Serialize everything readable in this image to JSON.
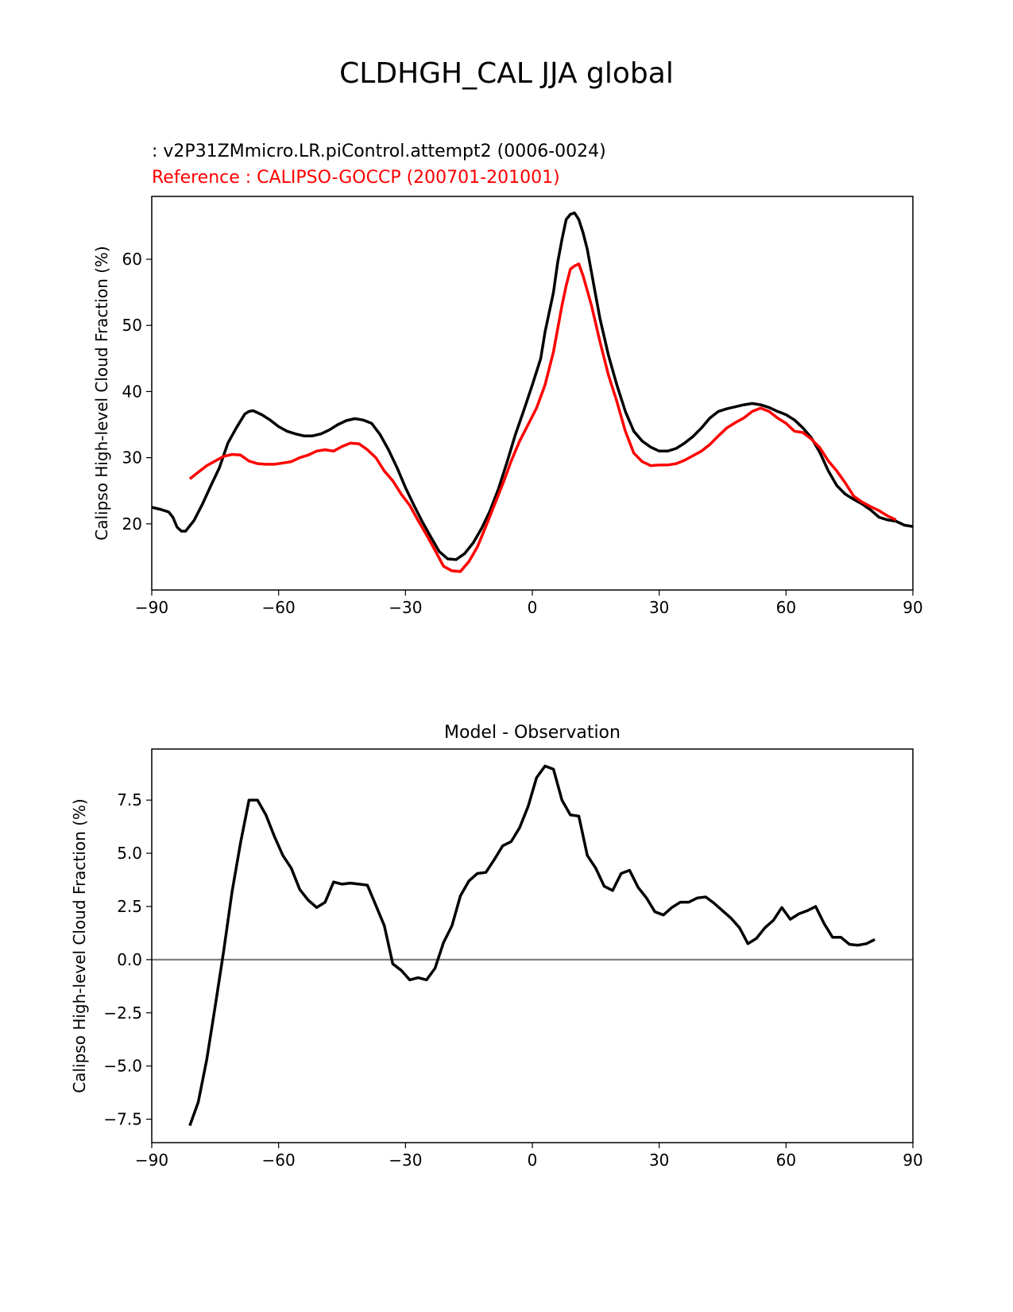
{
  "figure_title": "CLDHGH_CAL JJA global",
  "colors": {
    "test": "#000000",
    "reference": "#ff0000",
    "zero_line": "#808080"
  },
  "chart_data": [
    {
      "type": "line",
      "legend": {
        "test_label": " : v2P31ZMmicro.LR.piControl.attempt2 (0006-0024)",
        "ref_label": "Reference : CALIPSO-GOCCP (200701-201001)",
        "placement": "top-left"
      },
      "xlabel": "",
      "ylabel": "Calipso High-level Cloud Fraction (%)",
      "xlim": [
        -90,
        90
      ],
      "ylim": [
        10,
        69.5
      ],
      "xticks": [
        -90,
        -60,
        -30,
        0,
        30,
        60,
        90
      ],
      "xtick_labels": [
        "−90",
        "−60",
        "−30",
        "0",
        "30",
        "60",
        "90"
      ],
      "yticks": [
        20,
        30,
        40,
        50,
        60
      ],
      "ytick_labels": [
        "20",
        "30",
        "40",
        "50",
        "60"
      ],
      "series": [
        {
          "name": "test",
          "color": "#000000",
          "points": [
            [
              -90,
              22.5
            ],
            [
              -88,
              22.2
            ],
            [
              -86,
              21.8
            ],
            [
              -85,
              21
            ],
            [
              -84,
              19.5
            ],
            [
              -83,
              18.9
            ],
            [
              -82,
              18.9
            ],
            [
              -80,
              20.5
            ],
            [
              -78,
              23
            ],
            [
              -76,
              25.8
            ],
            [
              -74,
              28.5
            ],
            [
              -72,
              32.2
            ],
            [
              -70,
              34.5
            ],
            [
              -68,
              36.6
            ],
            [
              -67,
              37
            ],
            [
              -66,
              37.1
            ],
            [
              -64,
              36.5
            ],
            [
              -62,
              35.7
            ],
            [
              -60,
              34.7
            ],
            [
              -58,
              34
            ],
            [
              -56,
              33.6
            ],
            [
              -54,
              33.3
            ],
            [
              -52,
              33.3
            ],
            [
              -50,
              33.6
            ],
            [
              -48,
              34.2
            ],
            [
              -46,
              35
            ],
            [
              -44,
              35.6
            ],
            [
              -42,
              35.9
            ],
            [
              -40,
              35.7
            ],
            [
              -38,
              35.2
            ],
            [
              -36,
              33.5
            ],
            [
              -34,
              31.2
            ],
            [
              -32,
              28.5
            ],
            [
              -30,
              25.5
            ],
            [
              -28,
              22.8
            ],
            [
              -26,
              20.3
            ],
            [
              -24,
              18
            ],
            [
              -22,
              15.8
            ],
            [
              -20,
              14.7
            ],
            [
              -18,
              14.6
            ],
            [
              -16,
              15.5
            ],
            [
              -14,
              17.1
            ],
            [
              -12,
              19.3
            ],
            [
              -10,
              22
            ],
            [
              -8,
              25.3
            ],
            [
              -6,
              29.3
            ],
            [
              -4,
              33.5
            ],
            [
              -2,
              37.2
            ],
            [
              0,
              41
            ],
            [
              2,
              45
            ],
            [
              3,
              49
            ],
            [
              4,
              52
            ],
            [
              5,
              55
            ],
            [
              6,
              59.5
            ],
            [
              7,
              63
            ],
            [
              8,
              66
            ],
            [
              9,
              66.8
            ],
            [
              10,
              67
            ],
            [
              11,
              66
            ],
            [
              12,
              64
            ],
            [
              13,
              61.5
            ],
            [
              14,
              58
            ],
            [
              15,
              54.5
            ],
            [
              16,
              51
            ],
            [
              18,
              45.5
            ],
            [
              20,
              41
            ],
            [
              22,
              37
            ],
            [
              24,
              34
            ],
            [
              26,
              32.5
            ],
            [
              28,
              31.6
            ],
            [
              30,
              31
            ],
            [
              32,
              31
            ],
            [
              34,
              31.4
            ],
            [
              36,
              32.2
            ],
            [
              38,
              33.2
            ],
            [
              40,
              34.5
            ],
            [
              42,
              36
            ],
            [
              44,
              37
            ],
            [
              46,
              37.4
            ],
            [
              48,
              37.7
            ],
            [
              50,
              38
            ],
            [
              52,
              38.2
            ],
            [
              54,
              38
            ],
            [
              56,
              37.6
            ],
            [
              58,
              37
            ],
            [
              60,
              36.5
            ],
            [
              62,
              35.7
            ],
            [
              64,
              34.5
            ],
            [
              66,
              33
            ],
            [
              68,
              30.8
            ],
            [
              70,
              28
            ],
            [
              72,
              25.8
            ],
            [
              74,
              24.5
            ],
            [
              76,
              23.7
            ],
            [
              78,
              23
            ],
            [
              80,
              22.1
            ],
            [
              82,
              21
            ],
            [
              84,
              20.6
            ],
            [
              86,
              20.4
            ],
            [
              88,
              19.8
            ],
            [
              90,
              19.6
            ]
          ]
        },
        {
          "name": "reference",
          "color": "#ff0000",
          "points": [
            [
              -81,
              26.8
            ],
            [
              -79,
              27.8
            ],
            [
              -77,
              28.8
            ],
            [
              -75,
              29.5
            ],
            [
              -73,
              30.2
            ],
            [
              -71,
              30.5
            ],
            [
              -69,
              30.4
            ],
            [
              -67,
              29.5
            ],
            [
              -65,
              29.1
            ],
            [
              -63,
              29
            ],
            [
              -61,
              29
            ],
            [
              -59,
              29.2
            ],
            [
              -57,
              29.4
            ],
            [
              -55,
              30
            ],
            [
              -53,
              30.4
            ],
            [
              -51,
              31
            ],
            [
              -49,
              31.2
            ],
            [
              -47,
              31
            ],
            [
              -45,
              31.7
            ],
            [
              -43,
              32.2
            ],
            [
              -41,
              32.1
            ],
            [
              -39,
              31.2
            ],
            [
              -37,
              30
            ],
            [
              -35,
              28
            ],
            [
              -33,
              26.5
            ],
            [
              -31,
              24.5
            ],
            [
              -29,
              22.8
            ],
            [
              -27,
              20.5
            ],
            [
              -25,
              18.3
            ],
            [
              -23,
              16
            ],
            [
              -21,
              13.6
            ],
            [
              -19,
              12.9
            ],
            [
              -17,
              12.8
            ],
            [
              -15,
              14.3
            ],
            [
              -13,
              16.5
            ],
            [
              -11,
              19.6
            ],
            [
              -9,
              22.8
            ],
            [
              -7,
              26
            ],
            [
              -5,
              29.5
            ],
            [
              -3,
              32.5
            ],
            [
              -1,
              35
            ],
            [
              1,
              37.5
            ],
            [
              3,
              41
            ],
            [
              5,
              46
            ],
            [
              7,
              53
            ],
            [
              8,
              56
            ],
            [
              9,
              58.5
            ],
            [
              10,
              59
            ],
            [
              11,
              59.3
            ],
            [
              12,
              57.5
            ],
            [
              14,
              53
            ],
            [
              16,
              47.5
            ],
            [
              18,
              42.5
            ],
            [
              20,
              38.5
            ],
            [
              22,
              34
            ],
            [
              24,
              30.7
            ],
            [
              26,
              29.4
            ],
            [
              28,
              28.8
            ],
            [
              30,
              28.9
            ],
            [
              32,
              28.9
            ],
            [
              34,
              29.1
            ],
            [
              36,
              29.6
            ],
            [
              38,
              30.3
            ],
            [
              40,
              31
            ],
            [
              42,
              32
            ],
            [
              44,
              33.3
            ],
            [
              46,
              34.5
            ],
            [
              48,
              35.3
            ],
            [
              50,
              36
            ],
            [
              52,
              37
            ],
            [
              54,
              37.5
            ],
            [
              56,
              37
            ],
            [
              58,
              36
            ],
            [
              60,
              35.2
            ],
            [
              62,
              34
            ],
            [
              64,
              33.8
            ],
            [
              66,
              32.8
            ],
            [
              68,
              31.5
            ],
            [
              70,
              29.5
            ],
            [
              72,
              28
            ],
            [
              74,
              26.2
            ],
            [
              76,
              24.2
            ],
            [
              78,
              23.3
            ],
            [
              80,
              22.6
            ],
            [
              82,
              22
            ],
            [
              84,
              21.2
            ],
            [
              86,
              20.6
            ]
          ]
        }
      ]
    },
    {
      "type": "line",
      "title": "Model - Observation",
      "xlabel": "",
      "ylabel": "Calipso High-level Cloud Fraction (%)",
      "xlim": [
        -90,
        90
      ],
      "ylim": [
        -8.6,
        9.9
      ],
      "xticks": [
        -90,
        -60,
        -30,
        0,
        30,
        60,
        90
      ],
      "xtick_labels": [
        "−90",
        "−60",
        "−30",
        "0",
        "30",
        "60",
        "90"
      ],
      "yticks": [
        -7.5,
        -5.0,
        -2.5,
        0.0,
        2.5,
        5.0,
        7.5
      ],
      "ytick_labels": [
        "−7.5",
        "−5.0",
        "−2.5",
        "0.0",
        "2.5",
        "5.0",
        "7.5"
      ],
      "zero_line": 0,
      "series": [
        {
          "name": "difference",
          "color": "#000000",
          "points": [
            [
              -81,
              -7.8
            ],
            [
              -79,
              -6.7
            ],
            [
              -77,
              -4.7
            ],
            [
              -75,
              -2.2
            ],
            [
              -73,
              0.4
            ],
            [
              -71,
              3.2
            ],
            [
              -69,
              5.5
            ],
            [
              -67,
              7.5
            ],
            [
              -65,
              7.5
            ],
            [
              -63,
              6.8
            ],
            [
              -61,
              5.8
            ],
            [
              -59,
              4.9
            ],
            [
              -57,
              4.3
            ],
            [
              -55,
              3.3
            ],
            [
              -53,
              2.8
            ],
            [
              -51,
              2.45
            ],
            [
              -49,
              2.7
            ],
            [
              -47,
              3.65
            ],
            [
              -45,
              3.55
            ],
            [
              -43,
              3.6
            ],
            [
              -41,
              3.55
            ],
            [
              -39,
              3.5
            ],
            [
              -37,
              2.55
            ],
            [
              -35,
              1.6
            ],
            [
              -33,
              -0.2
            ],
            [
              -31,
              -0.5
            ],
            [
              -29,
              -0.95
            ],
            [
              -27,
              -0.85
            ],
            [
              -25,
              -0.95
            ],
            [
              -23,
              -0.4
            ],
            [
              -21,
              0.8
            ],
            [
              -19,
              1.6
            ],
            [
              -17,
              3.0
            ],
            [
              -15,
              3.7
            ],
            [
              -13,
              4.05
            ],
            [
              -11,
              4.1
            ],
            [
              -9,
              4.7
            ],
            [
              -7,
              5.35
            ],
            [
              -5,
              5.55
            ],
            [
              -3,
              6.2
            ],
            [
              -1,
              7.2
            ],
            [
              1,
              8.55
            ],
            [
              3,
              9.1
            ],
            [
              5,
              8.95
            ],
            [
              7,
              7.5
            ],
            [
              9,
              6.8
            ],
            [
              11,
              6.75
            ],
            [
              13,
              4.9
            ],
            [
              15,
              4.3
            ],
            [
              17,
              3.45
            ],
            [
              19,
              3.25
            ],
            [
              21,
              4.05
            ],
            [
              23,
              4.2
            ],
            [
              25,
              3.4
            ],
            [
              27,
              2.9
            ],
            [
              29,
              2.25
            ],
            [
              31,
              2.1
            ],
            [
              33,
              2.45
            ],
            [
              35,
              2.7
            ],
            [
              37,
              2.7
            ],
            [
              39,
              2.9
            ],
            [
              41,
              2.95
            ],
            [
              43,
              2.65
            ],
            [
              45,
              2.3
            ],
            [
              47,
              1.95
            ],
            [
              49,
              1.5
            ],
            [
              51,
              0.75
            ],
            [
              53,
              1.0
            ],
            [
              55,
              1.5
            ],
            [
              57,
              1.85
            ],
            [
              59,
              2.45
            ],
            [
              61,
              1.9
            ],
            [
              63,
              2.15
            ],
            [
              65,
              2.3
            ],
            [
              67,
              2.5
            ],
            [
              69,
              1.7
            ],
            [
              71,
              1.05
            ],
            [
              73,
              1.05
            ],
            [
              75,
              0.72
            ],
            [
              77,
              0.68
            ],
            [
              79,
              0.75
            ],
            [
              81,
              0.95
            ]
          ]
        }
      ]
    }
  ]
}
